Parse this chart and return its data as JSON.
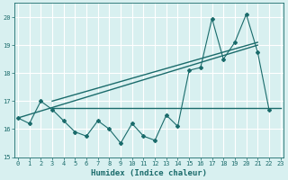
{
  "x_values": [
    0,
    1,
    2,
    3,
    4,
    5,
    6,
    7,
    8,
    9,
    10,
    11,
    12,
    13,
    14,
    15,
    16,
    17,
    18,
    19,
    20,
    21,
    22,
    23
  ],
  "zigzag_y": [
    16.4,
    16.2,
    17.0,
    16.7,
    16.3,
    15.9,
    15.75,
    16.3,
    16.0,
    15.5,
    16.2,
    15.75,
    15.6,
    16.5,
    16.1,
    18.1,
    18.2,
    19.95,
    18.5,
    19.1,
    20.1,
    18.75,
    16.7,
    null
  ],
  "trend_line1_x": [
    0,
    21
  ],
  "trend_line1_y": [
    16.4,
    19.0
  ],
  "trend_line2_x": [
    3,
    21
  ],
  "trend_line2_y": [
    17.0,
    19.1
  ],
  "horizontal_line_x": [
    3,
    23
  ],
  "horizontal_line_y": [
    16.75,
    16.75
  ],
  "xlim": [
    -0.3,
    23.3
  ],
  "ylim": [
    15.0,
    20.5
  ],
  "yticks": [
    15,
    16,
    17,
    18,
    19,
    20
  ],
  "xtick_labels": [
    "0",
    "1",
    "2",
    "3",
    "4",
    "5",
    "6",
    "7",
    "8",
    "9",
    "10",
    "11",
    "12",
    "13",
    "14",
    "15",
    "16",
    "17",
    "18",
    "19",
    "20",
    "21",
    "22",
    "23"
  ],
  "xlabel": "Humidex (Indice chaleur)",
  "line_color": "#1a6b6b",
  "bg_color": "#d8f0f0",
  "grid_color": "#ffffff",
  "label_fontsize": 6.5,
  "tick_fontsize": 5.0
}
